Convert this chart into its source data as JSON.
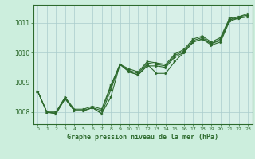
{
  "title": "Graphe pression niveau de la mer (hPa)",
  "background_color": "#cceedd",
  "plot_bg_color": "#d8f0e8",
  "grid_color": "#aacccc",
  "line_color": "#2d6a2d",
  "x_label": "Graphe pression niveau de la mer (hPa)",
  "xlim": [
    -0.5,
    23.5
  ],
  "ylim": [
    1007.6,
    1011.6
  ],
  "yticks": [
    1008,
    1009,
    1010,
    1011
  ],
  "xticks": [
    0,
    1,
    2,
    3,
    4,
    5,
    6,
    7,
    8,
    9,
    10,
    11,
    12,
    13,
    14,
    15,
    16,
    17,
    18,
    19,
    20,
    21,
    22,
    23
  ],
  "series": [
    [
      1008.7,
      1008.0,
      1007.95,
      1008.45,
      1008.05,
      1008.05,
      1008.15,
      1007.95,
      1008.5,
      1009.6,
      1009.35,
      1009.25,
      1009.6,
      1009.3,
      1009.3,
      1009.7,
      1010.0,
      1010.35,
      1010.45,
      1010.3,
      1010.45,
      1011.1,
      1011.15,
      1011.2
    ],
    [
      1008.7,
      1008.0,
      1007.95,
      1008.45,
      1008.05,
      1008.05,
      1008.15,
      1007.95,
      1008.75,
      1009.6,
      1009.35,
      1009.25,
      1009.55,
      1009.55,
      1009.5,
      1009.85,
      1010.0,
      1010.35,
      1010.45,
      1010.25,
      1010.35,
      1011.05,
      1011.15,
      1011.2
    ],
    [
      1008.7,
      1008.0,
      1008.0,
      1008.5,
      1008.05,
      1008.05,
      1008.15,
      1008.05,
      1008.85,
      1009.6,
      1009.4,
      1009.3,
      1009.65,
      1009.6,
      1009.55,
      1009.9,
      1010.05,
      1010.4,
      1010.5,
      1010.3,
      1010.4,
      1011.1,
      1011.2,
      1011.25
    ],
    [
      1008.7,
      1008.0,
      1008.0,
      1008.5,
      1008.1,
      1008.1,
      1008.2,
      1008.1,
      1008.9,
      1009.6,
      1009.45,
      1009.35,
      1009.7,
      1009.65,
      1009.6,
      1009.95,
      1010.1,
      1010.45,
      1010.55,
      1010.35,
      1010.5,
      1011.15,
      1011.2,
      1011.3
    ]
  ]
}
